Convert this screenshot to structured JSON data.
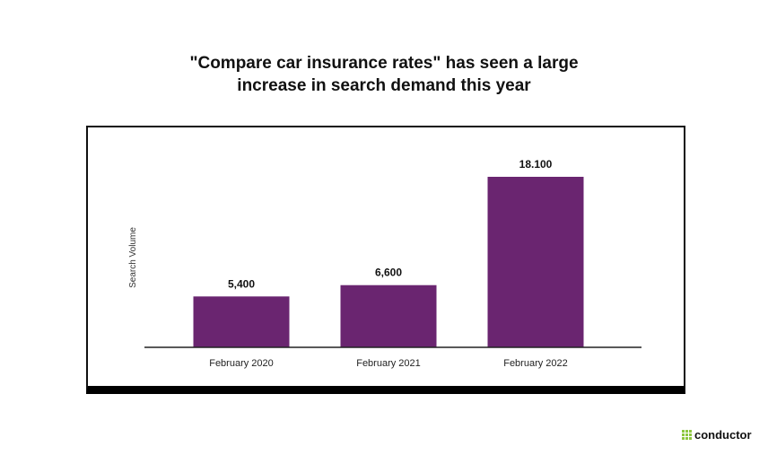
{
  "title_lines": [
    "\"Compare car insurance rates\" has seen a large",
    "increase in search demand this year"
  ],
  "chart_data": {
    "type": "bar",
    "title": "\"Compare car insurance rates\" has seen a large increase in search demand this year",
    "categories": [
      "February 2020",
      "February 2021",
      "February 2022"
    ],
    "values": [
      5400,
      6600,
      18100
    ],
    "value_labels": [
      "5,400",
      "6,600",
      "18.100"
    ],
    "xlabel": "",
    "ylabel": "Search Volume",
    "ylim": [
      0,
      18100
    ],
    "grid": false,
    "bar_color": "#6a2570"
  },
  "logo": {
    "text": "conductor",
    "accent": "#8dc63f"
  }
}
